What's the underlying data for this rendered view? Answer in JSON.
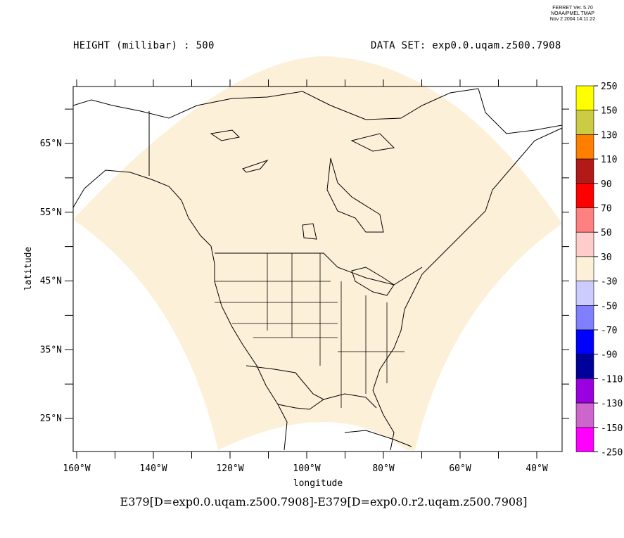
{
  "ferret": {
    "line1": "FERRET Ver. 5.70",
    "line2": "NOAA/PMEL TMAP",
    "line3": "Nov  2 2004 14:11:22"
  },
  "header": {
    "left": "HEIGHT (millibar) : 500",
    "right": "DATA SET: exp0.0.uqam.z500.7908"
  },
  "formula": "E379[D=exp0.0.uqam.z500.7908]-E379[D=exp0.0.r2.uqam.z500.7908]",
  "axes": {
    "xlabel": "longitude",
    "ylabel": "latitude",
    "x_ticks": [
      "160°W",
      "140°W",
      "120°W",
      "100°W",
      "80°W",
      "60°W",
      "40°W"
    ],
    "y_ticks": [
      "65°N",
      "55°N",
      "45°N",
      "35°N",
      "25°N"
    ]
  },
  "colorbar": {
    "labels": [
      "250",
      "150",
      "130",
      "110",
      "90",
      "70",
      "50",
      "30",
      "-30",
      "-50",
      "-70",
      "-90",
      "-110",
      "-130",
      "-150",
      "-250"
    ],
    "colors": [
      "#ffff00",
      "#cccc44",
      "#ff7f00",
      "#b21a1a",
      "#ff0000",
      "#ff8080",
      "#ffcccc",
      "#fdf0d8",
      "#ccccff",
      "#8080ff",
      "#0000ff",
      "#00009a",
      "#9a00e0",
      "#cc66cc",
      "#ff00ff"
    ]
  },
  "map": {
    "domain_fill": "#fdf0d8",
    "filled_band": "30 to -30"
  }
}
